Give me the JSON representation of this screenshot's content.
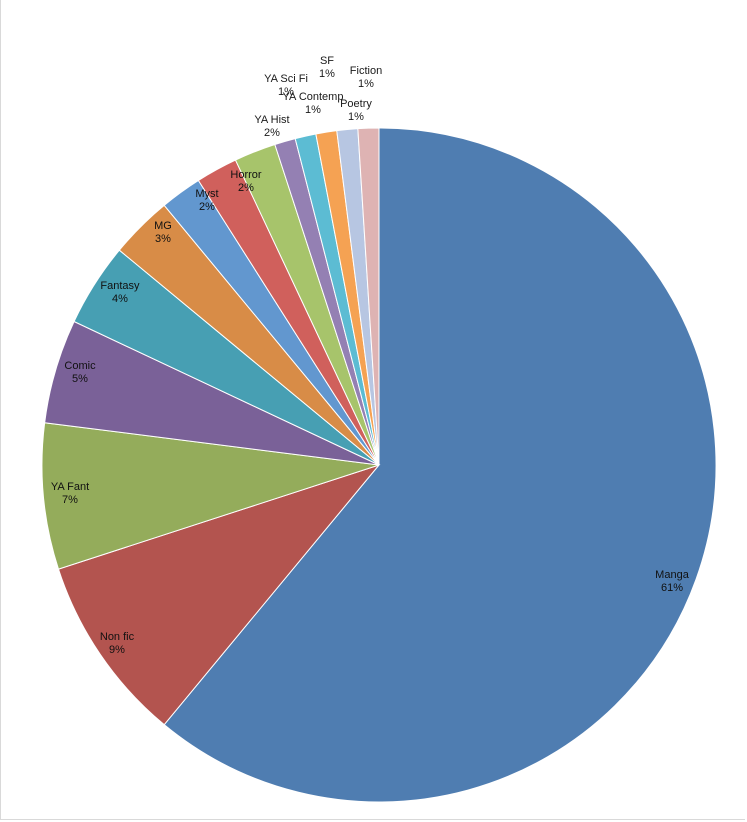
{
  "chart_data": {
    "type": "pie",
    "start_angle_deg": 0,
    "direction": "clockwise",
    "slices": [
      {
        "name": "Manga",
        "value": 61,
        "label": "61%",
        "color": "#4f7db1"
      },
      {
        "name": "Non fic",
        "value": 9,
        "label": "9%",
        "color": "#b3544f"
      },
      {
        "name": "YA Fant",
        "value": 7,
        "label": "7%",
        "color": "#94ac5b"
      },
      {
        "name": "Comic",
        "value": 5,
        "label": "5%",
        "color": "#7a6198"
      },
      {
        "name": "Fantasy",
        "value": 4,
        "label": "4%",
        "color": "#479fb3"
      },
      {
        "name": "MG",
        "value": 3,
        "label": "3%",
        "color": "#d88c47"
      },
      {
        "name": "Myst",
        "value": 2,
        "label": "2%",
        "color": "#6297cf"
      },
      {
        "name": "Horror",
        "value": 2,
        "label": "2%",
        "color": "#d0605c"
      },
      {
        "name": "YA Hist",
        "value": 2,
        "label": "2%",
        "color": "#a7c46b"
      },
      {
        "name": "YA Sci Fi",
        "value": 1,
        "label": "1%",
        "color": "#9480b3"
      },
      {
        "name": "YA Contemp",
        "value": 1,
        "label": "1%",
        "color": "#5cbcd3"
      },
      {
        "name": "SF",
        "value": 1,
        "label": "1%",
        "color": "#f5a253"
      },
      {
        "name": "Poetry",
        "value": 1,
        "label": "1%",
        "color": "#b7c6e2"
      },
      {
        "name": "Fiction",
        "value": 1,
        "label": "1%",
        "color": "#deb3b3"
      }
    ]
  }
}
